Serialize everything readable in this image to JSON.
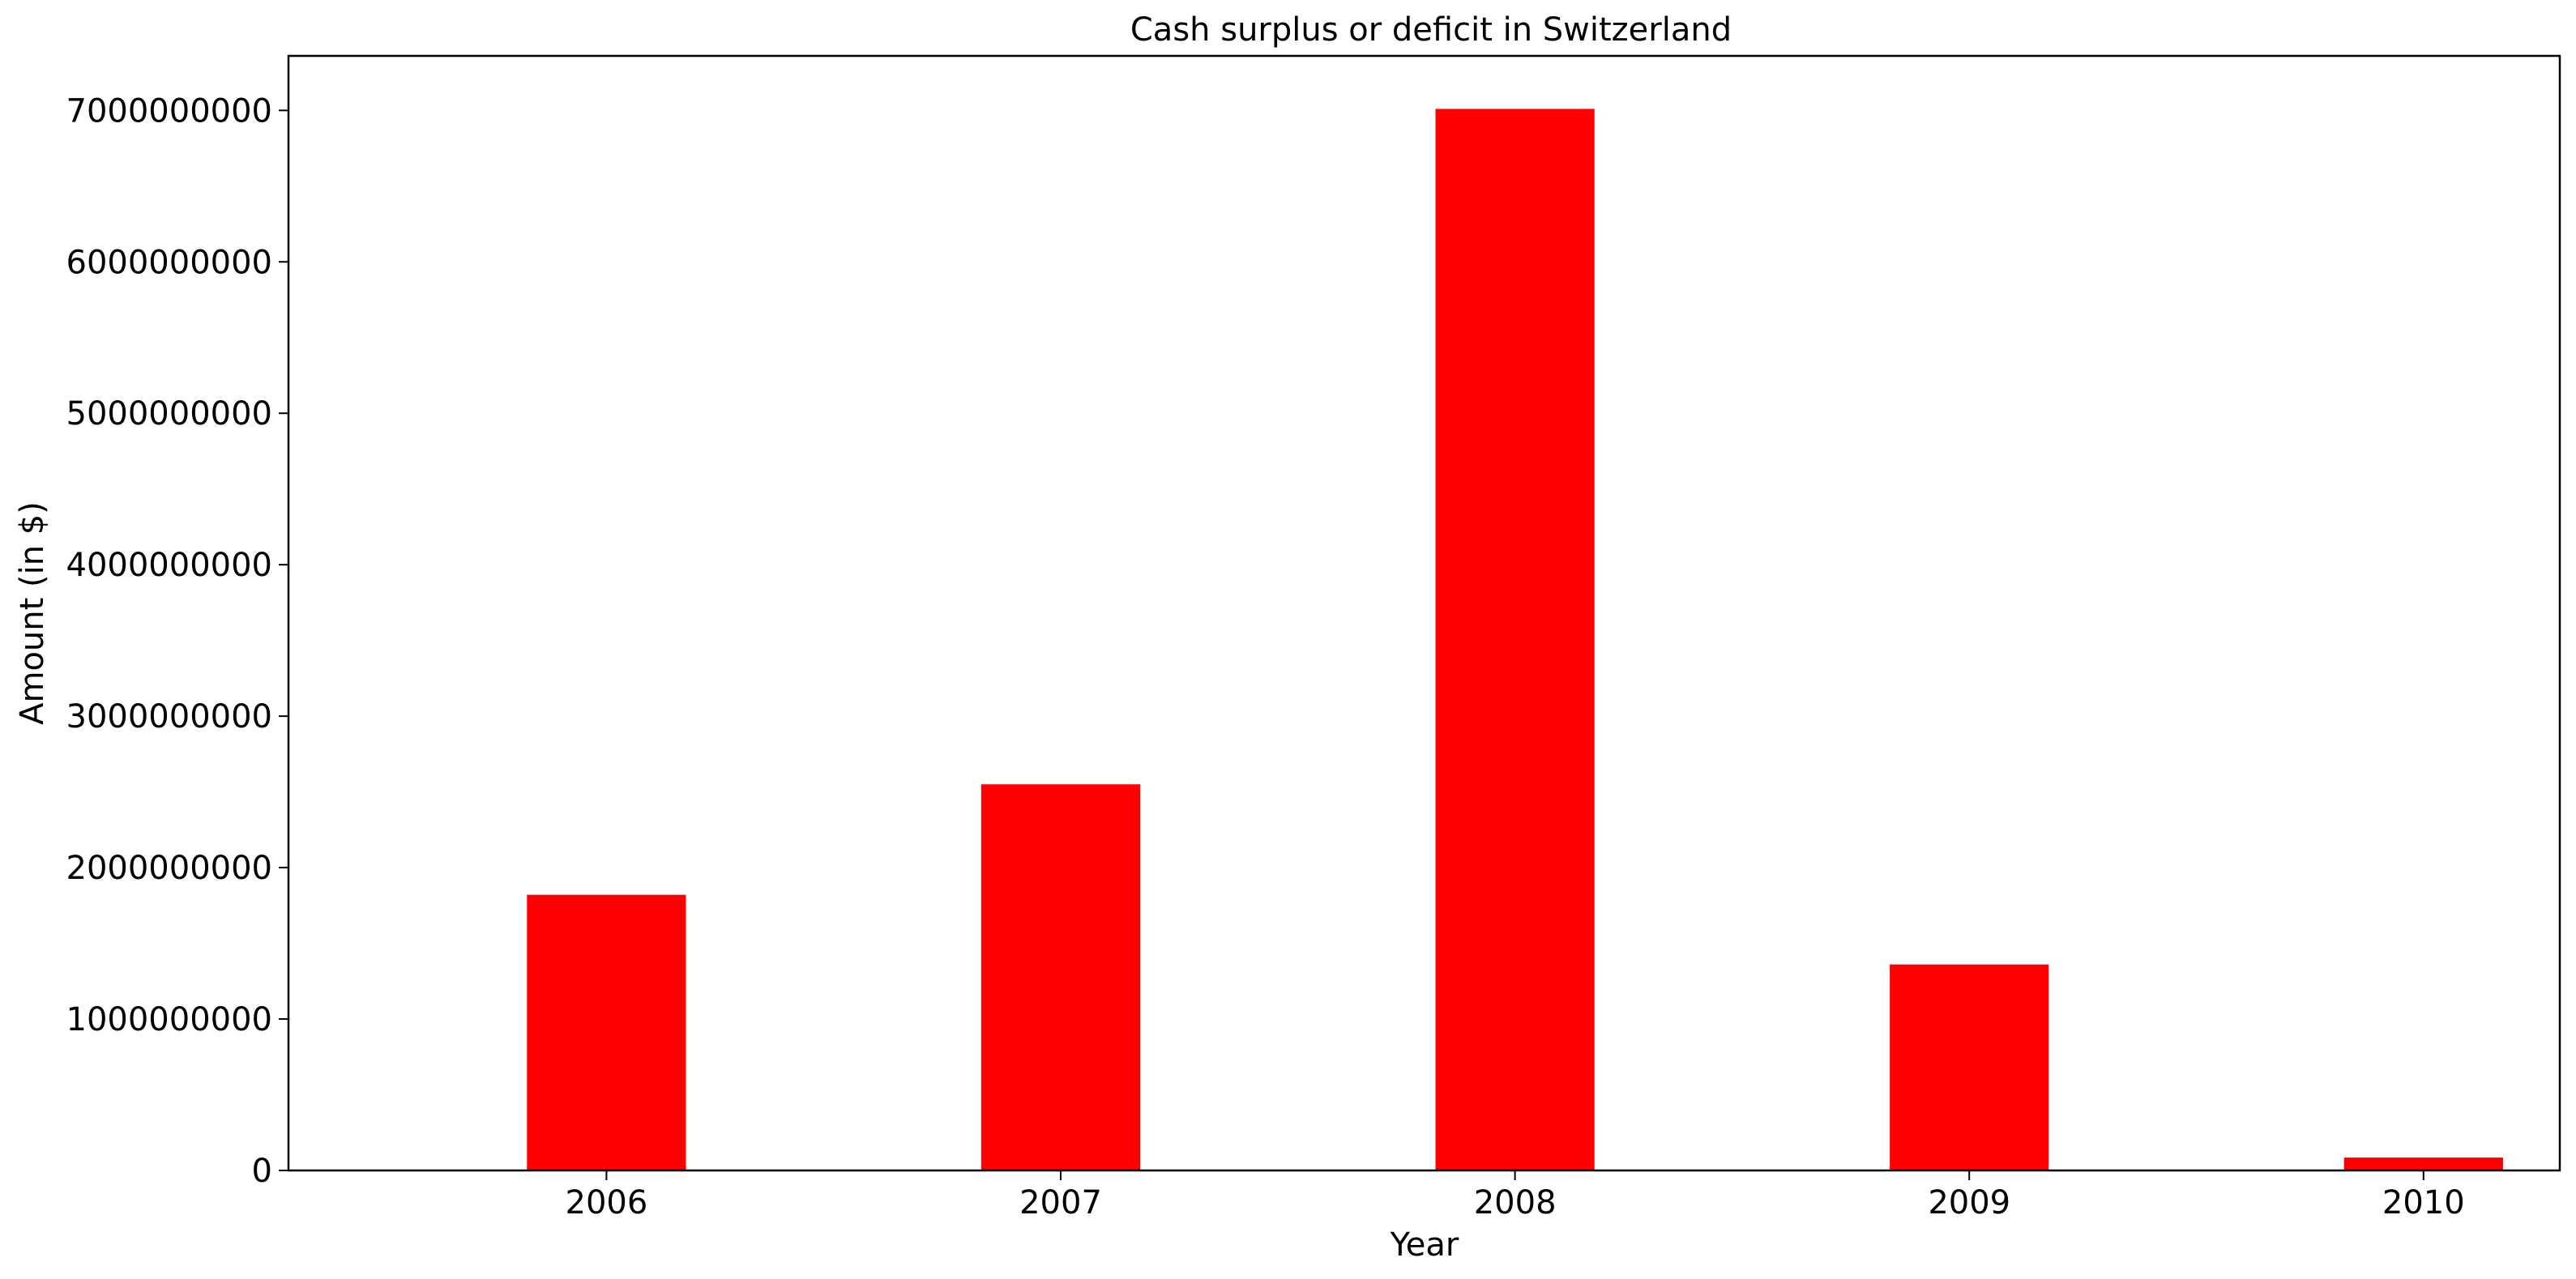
{
  "chart_data": {
    "type": "bar",
    "title": "Cash surplus or deficit in Switzerland",
    "xlabel": "Year",
    "ylabel": "Amount (in $)",
    "categories": [
      "2006",
      "2007",
      "2008",
      "2009",
      "2010"
    ],
    "values": [
      1820000000,
      2550000000,
      7010000000,
      1360000000,
      85000000
    ],
    "ylim": [
      0,
      7360000000
    ],
    "yticks": [
      0,
      1000000000,
      2000000000,
      3000000000,
      4000000000,
      5000000000,
      6000000000,
      7000000000
    ],
    "ytick_labels": [
      "0",
      "1000000000",
      "2000000000",
      "3000000000",
      "4000000000",
      "5000000000",
      "6000000000",
      "7000000000"
    ],
    "bar_color": "#ff0000",
    "grid": false,
    "legend": "none"
  }
}
